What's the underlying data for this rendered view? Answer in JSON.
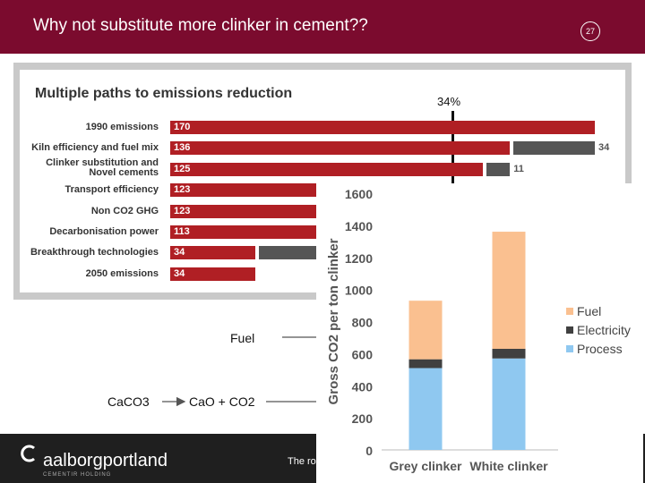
{
  "slide": {
    "title": "Why not substitute more clinker in cement??",
    "page_number": "27",
    "footer_text": "The ro",
    "colors": {
      "header": "#7b0b2e",
      "bar": "#b01f24",
      "gap_bar": "#555555",
      "fuel": "#fac090",
      "electricity": "#404040",
      "process": "#8fc8f0"
    }
  },
  "paths_panel": {
    "title": "Multiple paths to emissions reduction",
    "marker_label": "34%",
    "rows": [
      {
        "label": "1990 emissions",
        "value": 170,
        "value_text": "170",
        "gap_text": ""
      },
      {
        "label": "Kiln efficiency and fuel mix",
        "value": 136,
        "value_text": "136",
        "gap_text": "34"
      },
      {
        "label": "Clinker substitution and Novel cements",
        "value": 125,
        "value_text": "125",
        "gap_text": "11"
      },
      {
        "label": "Transport efficiency",
        "value": 123,
        "value_text": "123",
        "gap_text": ""
      },
      {
        "label": "Non CO2 GHG",
        "value": 123,
        "value_text": "123",
        "gap_text": ""
      },
      {
        "label": "Decarbonisation power",
        "value": 113,
        "value_text": "113",
        "gap_text": ""
      },
      {
        "label": "Breakthrough technologies",
        "value": 34,
        "value_text": "34",
        "gap_text": ""
      },
      {
        "label": "2050 emissions",
        "value": 34,
        "value_text": "34",
        "gap_text": ""
      }
    ]
  },
  "flow": {
    "fuel_label": "Fuel",
    "reactant": "CaCO3",
    "product": "CaO + CO2"
  },
  "logo": {
    "text": "aalborgportland",
    "subtext": "CEMENTIR HOLDING",
    "icon": "c-logo-icon"
  },
  "chart_data": {
    "type": "bar",
    "stacked": true,
    "categories": [
      "Grey clinker",
      "White clinker"
    ],
    "series": [
      {
        "name": "Process",
        "values": [
          510,
          570
        ]
      },
      {
        "name": "Electricity",
        "values": [
          55,
          60
        ]
      },
      {
        "name": "Fuel",
        "values": [
          365,
          730
        ]
      }
    ],
    "title": "",
    "xlabel": "",
    "ylabel": "Gross CO2 per ton clinker",
    "ylim": [
      0,
      1600
    ],
    "yticks": [
      0,
      200,
      400,
      600,
      800,
      1000,
      1200,
      1400,
      1600
    ],
    "legend": [
      {
        "name": "Fuel",
        "color": "#fac090"
      },
      {
        "name": "Electricity",
        "color": "#404040"
      },
      {
        "name": "Process",
        "color": "#8fc8f0"
      }
    ],
    "legend_position": "right",
    "grid": false
  }
}
